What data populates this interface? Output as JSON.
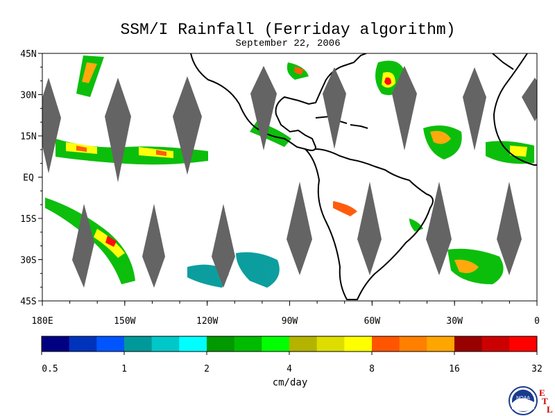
{
  "title": "SSM/I Rainfall (Ferriday algorithm)",
  "date": "September 22, 2006",
  "map": {
    "lat_labels": [
      "45N",
      "30N",
      "15N",
      "EQ",
      "15S",
      "30S",
      "45S"
    ],
    "lon_labels": [
      "180E",
      "150W",
      "120W",
      "90W",
      "60W",
      "30W",
      "0"
    ],
    "land_color": "#ffffff",
    "no_data_color": "#646464"
  },
  "colorbar": {
    "colors": [
      "#000080",
      "#0033bb",
      "#0055ff",
      "#00999a",
      "#00c8c8",
      "#00ffff",
      "#009900",
      "#00bb00",
      "#00ff00",
      "#b3b300",
      "#dddd00",
      "#ffff00",
      "#ff5500",
      "#ff8000",
      "#ffa500",
      "#990000",
      "#cc0000",
      "#ff0000"
    ],
    "tick_labels": [
      "0.5",
      "1",
      "2",
      "4",
      "8",
      "16",
      "32"
    ],
    "units": "cm/day"
  },
  "logo": {
    "text": "NOAA",
    "lab_letters": [
      "E",
      "T",
      "L"
    ]
  }
}
